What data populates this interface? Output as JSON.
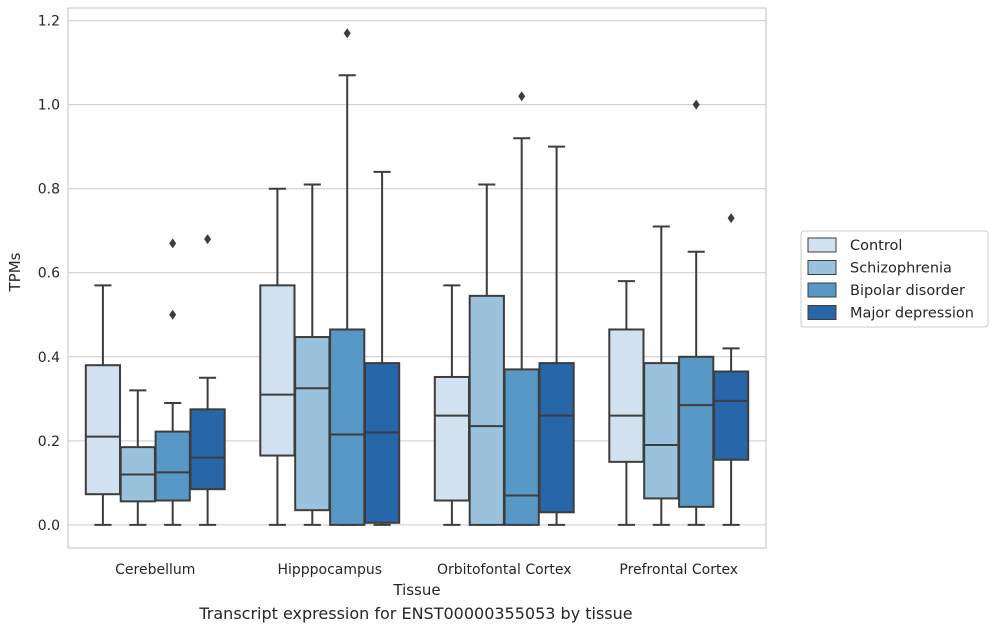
{
  "caption": "Transcript expression for ENST00000355053 by tissue",
  "chart_data": {
    "type": "box",
    "title": "",
    "xlabel": "Tissue",
    "ylabel": "TPMs",
    "ylim": [
      -0.055,
      1.23
    ],
    "yticks": [
      0.0,
      0.2,
      0.4,
      0.6,
      0.8,
      1.0,
      1.2
    ],
    "ytick_labels": [
      "0.0",
      "0.2",
      "0.4",
      "0.6",
      "0.8",
      "1.0",
      "1.2"
    ],
    "grid": true,
    "legend_position": "right",
    "categories": [
      "Cerebellum",
      "Hipppocampus",
      "Orbitofontal Cortex",
      "Prefrontal Cortex"
    ],
    "series": [
      {
        "name": "Control",
        "color": "#d1e1f0",
        "boxes": [
          {
            "whislo": 0.0,
            "q1": 0.073,
            "med": 0.21,
            "q3": 0.38,
            "whishi": 0.57,
            "fliers": []
          },
          {
            "whislo": 0.0,
            "q1": 0.165,
            "med": 0.31,
            "q3": 0.57,
            "whishi": 0.8,
            "fliers": []
          },
          {
            "whislo": 0.0,
            "q1": 0.058,
            "med": 0.26,
            "q3": 0.352,
            "whishi": 0.57,
            "fliers": []
          },
          {
            "whislo": 0.0,
            "q1": 0.15,
            "med": 0.26,
            "q3": 0.465,
            "whishi": 0.58,
            "fliers": []
          }
        ]
      },
      {
        "name": "Schizophrenia",
        "color": "#9ac2dd",
        "boxes": [
          {
            "whislo": 0.0,
            "q1": 0.056,
            "med": 0.12,
            "q3": 0.185,
            "whishi": 0.32,
            "fliers": []
          },
          {
            "whislo": 0.0,
            "q1": 0.035,
            "med": 0.325,
            "q3": 0.447,
            "whishi": 0.81,
            "fliers": []
          },
          {
            "whislo": 0.0,
            "q1": 0.0,
            "med": 0.235,
            "q3": 0.545,
            "whishi": 0.81,
            "fliers": []
          },
          {
            "whislo": 0.0,
            "q1": 0.063,
            "med": 0.19,
            "q3": 0.385,
            "whishi": 0.71,
            "fliers": []
          }
        ]
      },
      {
        "name": "Bipolar disorder",
        "color": "#5898c6",
        "boxes": [
          {
            "whislo": 0.0,
            "q1": 0.058,
            "med": 0.125,
            "q3": 0.222,
            "whishi": 0.29,
            "fliers": [
              0.5,
              0.67
            ]
          },
          {
            "whislo": 0.0,
            "q1": 0.0,
            "med": 0.215,
            "q3": 0.465,
            "whishi": 1.07,
            "fliers": [
              1.17
            ]
          },
          {
            "whislo": 0.0,
            "q1": 0.0,
            "med": 0.07,
            "q3": 0.37,
            "whishi": 0.92,
            "fliers": [
              1.02
            ]
          },
          {
            "whislo": 0.0,
            "q1": 0.043,
            "med": 0.285,
            "q3": 0.4,
            "whishi": 0.65,
            "fliers": [
              1.0
            ]
          }
        ]
      },
      {
        "name": "Major depression",
        "color": "#2766a8",
        "boxes": [
          {
            "whislo": 0.0,
            "q1": 0.085,
            "med": 0.16,
            "q3": 0.275,
            "whishi": 0.35,
            "fliers": [
              0.68
            ]
          },
          {
            "whislo": 0.0,
            "q1": 0.005,
            "med": 0.22,
            "q3": 0.385,
            "whishi": 0.84,
            "fliers": []
          },
          {
            "whislo": 0.0,
            "q1": 0.03,
            "med": 0.26,
            "q3": 0.385,
            "whishi": 0.9,
            "fliers": []
          },
          {
            "whislo": 0.0,
            "q1": 0.155,
            "med": 0.295,
            "q3": 0.365,
            "whishi": 0.42,
            "fliers": [
              0.73
            ]
          }
        ]
      }
    ]
  }
}
